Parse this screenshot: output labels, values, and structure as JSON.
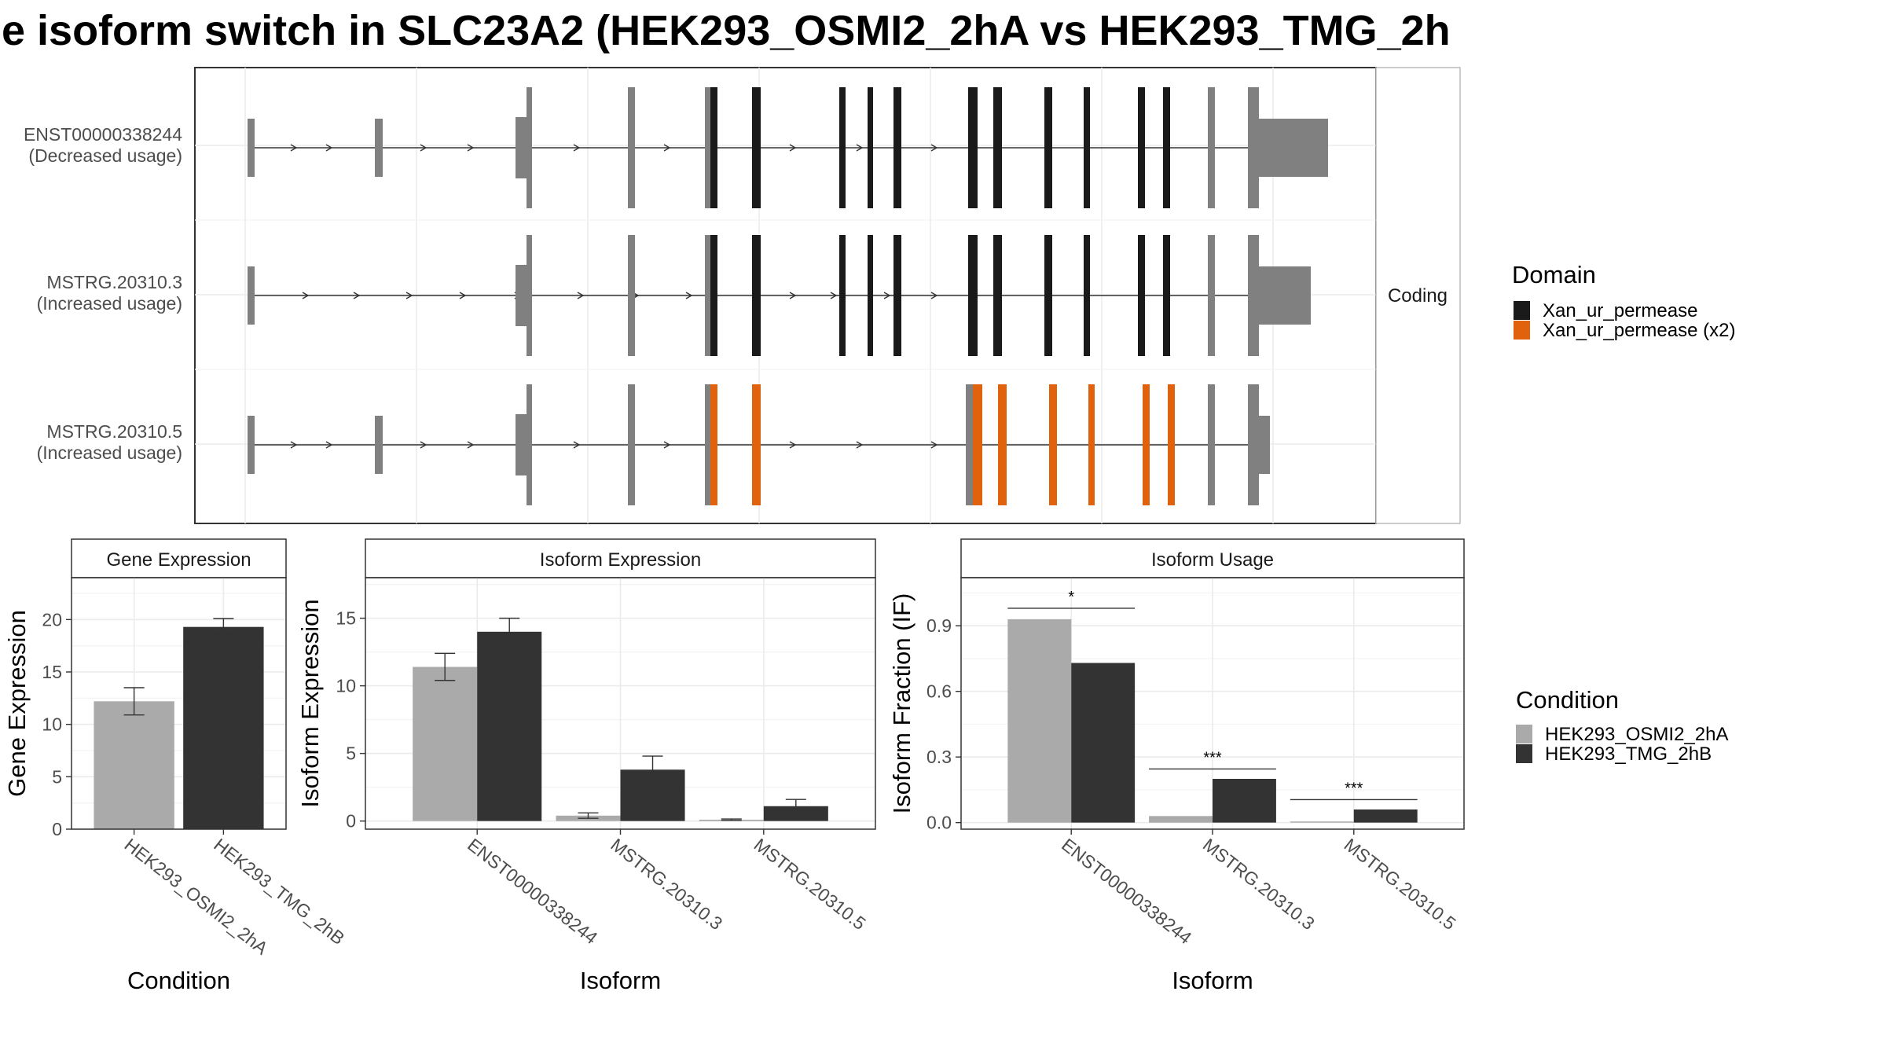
{
  "title": "e isoform switch in SLC23A2 (HEK293_OSMI2_2hA vs HEK293_TMG_2h",
  "isoform_panel": {
    "facet_label": "Coding",
    "transcripts": [
      {
        "id": "ENST00000338244",
        "usage": "(Decreased usage)"
      },
      {
        "id": "MSTRG.20310.3",
        "usage": "(Increased usage)"
      },
      {
        "id": "MSTRG.20310.5",
        "usage": "(Increased usage)"
      }
    ]
  },
  "domain_legend": {
    "title": "Domain",
    "entries": [
      {
        "label": "Xan_ur_permease",
        "color": "#1a1a1a"
      },
      {
        "label": "Xan_ur_permease (x2)",
        "color": "#e0620d"
      }
    ]
  },
  "condition_legend": {
    "title": "Condition",
    "entries": [
      {
        "label": "HEK293_OSMI2_2hA",
        "color": "#aaaaaa"
      },
      {
        "label": "HEK293_TMG_2hB",
        "color": "#333333"
      }
    ]
  },
  "chart_data": [
    {
      "type": "bar",
      "title": "Gene Expression",
      "xlabel": "Condition",
      "ylabel": "Gene Expression",
      "ylim": [
        0,
        24
      ],
      "yticks": [
        0,
        5,
        10,
        15,
        20
      ],
      "categories": [
        "HEK293_OSMI2_2hA",
        "HEK293_TMG_2hB"
      ],
      "values": [
        12.2,
        19.3
      ],
      "errors": [
        [
          10.9,
          13.5
        ],
        [
          18.6,
          20.1
        ]
      ]
    },
    {
      "type": "bar",
      "title": "Isoform Expression",
      "xlabel": "Isoform",
      "ylabel": "Isoform Expression",
      "ylim": [
        -0.6,
        18
      ],
      "yticks": [
        0,
        5,
        10,
        15
      ],
      "categories": [
        "ENST00000338244",
        "MSTRG.20310.3",
        "MSTRG.20310.5"
      ],
      "series": [
        {
          "name": "HEK293_OSMI2_2hA",
          "values": [
            11.4,
            0.4,
            0.1
          ],
          "errors": [
            [
              10.4,
              12.4
            ],
            [
              0.2,
              0.6
            ],
            [
              0.05,
              0.15
            ]
          ]
        },
        {
          "name": "HEK293_TMG_2hB",
          "values": [
            14.0,
            3.8,
            1.1
          ],
          "errors": [
            [
              13.0,
              15.0
            ],
            [
              2.8,
              4.8
            ],
            [
              0.6,
              1.6
            ]
          ]
        }
      ]
    },
    {
      "type": "bar",
      "title": "Isoform Usage",
      "xlabel": "Isoform",
      "ylabel": "Isoform Fraction (IF)",
      "ylim": [
        -0.03,
        1.12
      ],
      "yticks": [
        "0.0",
        "0.3",
        "0.6",
        "0.9"
      ],
      "categories": [
        "ENST00000338244",
        "MSTRG.20310.3",
        "MSTRG.20310.5"
      ],
      "series": [
        {
          "name": "HEK293_OSMI2_2hA",
          "values": [
            0.93,
            0.03,
            0.005
          ]
        },
        {
          "name": "HEK293_TMG_2hB",
          "values": [
            0.73,
            0.2,
            0.06
          ]
        }
      ],
      "significance": [
        "*",
        "***",
        "***"
      ],
      "significance_y": [
        0.98,
        0.245,
        0.105
      ]
    }
  ]
}
